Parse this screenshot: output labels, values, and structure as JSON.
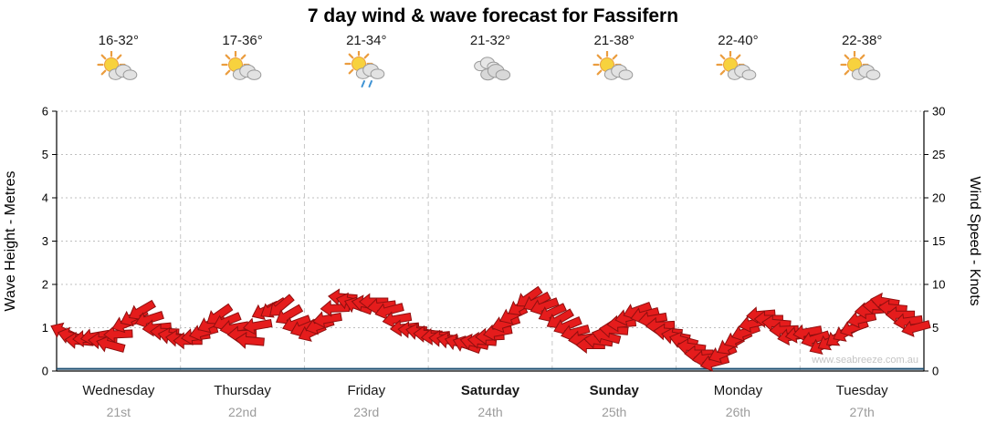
{
  "title": "7 day wind & wave forecast for Fassifern",
  "watermark": "www.seabreeze.com.au",
  "axes": {
    "left_label": "Wave Height - Metres",
    "right_label": "Wind Speed - Knots",
    "left_ticks": [
      0,
      1,
      2,
      3,
      4,
      5,
      6
    ],
    "right_ticks": [
      0,
      5,
      10,
      15,
      20,
      25,
      30
    ]
  },
  "days": [
    {
      "name": "Wednesday",
      "date": "21st",
      "temp": "16-32°",
      "icon": "sun-cloud",
      "bold": false
    },
    {
      "name": "Thursday",
      "date": "22nd",
      "temp": "17-36°",
      "icon": "sun-cloud",
      "bold": false
    },
    {
      "name": "Friday",
      "date": "23rd",
      "temp": "21-34°",
      "icon": "sun-cloud-rain",
      "bold": false
    },
    {
      "name": "Saturday",
      "date": "24th",
      "temp": "21-32°",
      "icon": "cloud",
      "bold": true
    },
    {
      "name": "Sunday",
      "date": "25th",
      "temp": "21-38°",
      "icon": "sun-cloud",
      "bold": true
    },
    {
      "name": "Monday",
      "date": "26th",
      "temp": "22-40°",
      "icon": "sun-cloud",
      "bold": false
    },
    {
      "name": "Tuesday",
      "date": "27th",
      "temp": "22-38°",
      "icon": "sun-cloud",
      "bold": false
    }
  ],
  "chart_data": {
    "type": "line",
    "title": "7 day wind & wave forecast for Fassifern",
    "x": {
      "unit": "hours",
      "start": 0,
      "step": 3,
      "day_labels": [
        "Wednesday 21st",
        "Thursday 22nd",
        "Friday 23rd",
        "Saturday 24th",
        "Sunday 25th",
        "Monday 26th",
        "Tuesday 27th"
      ]
    },
    "left_axis": {
      "label": "Wave Height - Metres",
      "range": [
        0,
        6
      ]
    },
    "right_axis": {
      "label": "Wind Speed - Knots",
      "range": [
        0,
        30
      ]
    },
    "grid": true,
    "legend": "none",
    "series": [
      {
        "name": "Wind speed",
        "axis": "right",
        "unit": "knots",
        "style": "red-arrows",
        "color": "#e51c1c",
        "outline_color": "#8f0f0f",
        "values": [
          4.5,
          3.5,
          4.0,
          3.0,
          5.5,
          7.0,
          5.0,
          4.0,
          3.5,
          4.5,
          6.5,
          5.0,
          3.5,
          7.0,
          7.5,
          5.5,
          4.5,
          6.0,
          8.5,
          7.5,
          8.0,
          7.0,
          5.0,
          4.5,
          4.0,
          3.5,
          3.0,
          3.5,
          4.5,
          6.5,
          8.5,
          7.5,
          6.0,
          4.5,
          3.0,
          4.0,
          5.5,
          7.0,
          6.0,
          4.5,
          3.5,
          2.0,
          1.0,
          3.0,
          4.5,
          6.5,
          5.5,
          4.0,
          4.5,
          3.0,
          4.0,
          5.0,
          7.0,
          8.0,
          6.5,
          5.0
        ],
        "directions_deg": [
          205,
          185,
          170,
          195,
          160,
          150,
          175,
          190,
          180,
          165,
          145,
          170,
          185,
          155,
          140,
          160,
          155,
          170,
          185,
          200,
          180,
          165,
          175,
          190,
          175,
          190,
          200,
          185,
          170,
          155,
          145,
          160,
          150,
          165,
          180,
          195,
          175,
          160,
          170,
          185,
          195,
          180,
          165,
          150,
          160,
          175,
          185,
          170,
          170,
          155,
          145,
          160,
          175,
          190,
          180,
          165
        ]
      },
      {
        "name": "Wave height",
        "axis": "left",
        "unit": "m",
        "style": "line",
        "color": "#1d4f72",
        "constant_value": 0.05,
        "points": 56
      }
    ]
  }
}
